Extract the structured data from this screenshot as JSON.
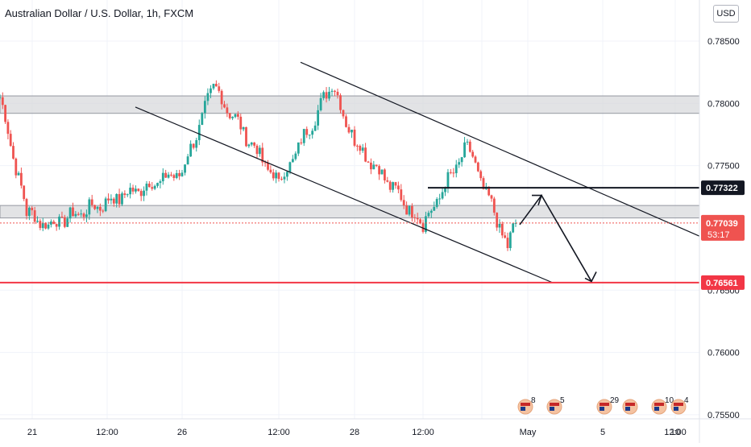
{
  "header": {
    "title": "Australian Dollar / U.S. Dollar, 1h, FXCM",
    "currency": "USD"
  },
  "colors": {
    "up": "#26a69a",
    "down": "#ef5350",
    "zone_fill": "#d8d9dc",
    "zone_stroke": "#9598a1",
    "trendline": "#131722",
    "support": "#f23645",
    "grid": "#f0f3fa"
  },
  "chart_data": {
    "type": "candlestick",
    "title": "Australian Dollar / U.S. Dollar, 1h, FXCM",
    "ylim": [
      0.7548,
      0.7883
    ],
    "y_ticks": [
      "0.78500",
      "0.78000",
      "0.77500",
      "0.76500",
      "0.76000",
      "0.75500"
    ],
    "x_ticks": [
      "21",
      "12:00",
      "26",
      "12:00",
      "28",
      "12:00",
      "May",
      "5",
      "12:00",
      "10"
    ],
    "last_price": "0.77039",
    "countdown": "53:17",
    "price_labels": [
      {
        "text": "0.77322",
        "value": 0.77322,
        "style": "black"
      },
      {
        "text": "0.76561",
        "value": 0.76561,
        "style": "red"
      }
    ],
    "zones": [
      {
        "from": 0.7792,
        "to": 0.7806
      },
      {
        "from": 0.7708,
        "to": 0.7718
      }
    ],
    "key_points": [
      {
        "time": "start",
        "price": 0.7805
      },
      {
        "time": "21",
        "price": 0.7712
      },
      {
        "time": "23",
        "price": 0.7702
      },
      {
        "time": "26",
        "price": 0.7745
      },
      {
        "time": "27",
        "price": 0.7813
      },
      {
        "time": "28",
        "price": 0.7735
      },
      {
        "time": "29",
        "price": 0.7815
      },
      {
        "time": "30",
        "price": 0.777
      },
      {
        "time": "May",
        "price": 0.7702
      },
      {
        "time": "3",
        "price": 0.7765
      },
      {
        "time": "4",
        "price": 0.7685
      },
      {
        "time": "now",
        "price": 0.77039
      }
    ],
    "channel": {
      "upper_line": [
        {
          "price": 0.7833
        },
        {
          "price": 0.7696
        }
      ],
      "lower_line": [
        {
          "price": 0.7797
        },
        {
          "price": 0.7656
        }
      ]
    },
    "horizontal_level": 0.77322,
    "support_level": 0.76561,
    "projection": [
      0.77039,
      0.773,
      0.7657
    ]
  },
  "events": [
    {
      "label": "8"
    },
    {
      "label": "5"
    },
    {
      "label": "29"
    },
    {
      "label": ""
    },
    {
      "label": "10"
    },
    {
      "label": "4"
    }
  ]
}
